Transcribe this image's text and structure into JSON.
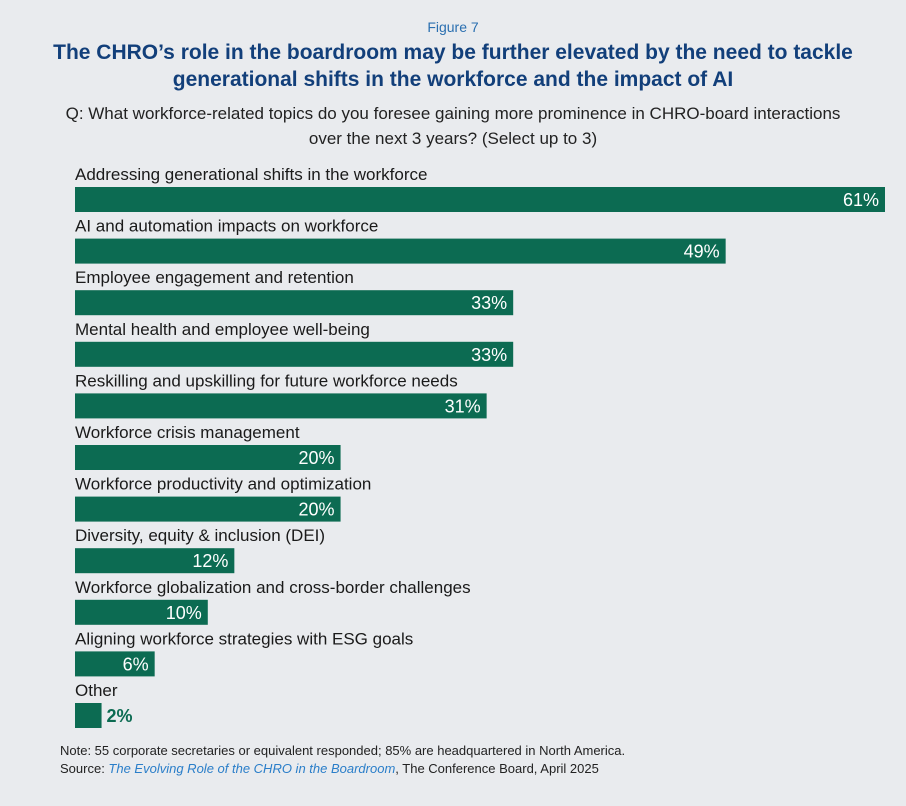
{
  "figure_label": "Figure 7",
  "title": "The CHRO’s role in the boardroom may be further elevated by the need to tackle generational shifts in the workforce and the impact of AI",
  "question": "Q: What workforce-related topics do you foresee gaining more prominence in CHRO-board interactions over the next 3 years? (Select up to 3)",
  "bar_color": "#0c6b52",
  "chart_data": {
    "type": "bar",
    "orientation": "horizontal",
    "categories": [
      "Addressing generational shifts in the workforce",
      "AI and automation impacts on workforce",
      "Employee engagement and retention",
      "Mental health and employee well-being",
      "Reskilling and upskilling for future workforce needs",
      "Workforce crisis management",
      "Workforce productivity and optimization",
      "Diversity, equity & inclusion (DEI)",
      "Workforce globalization and cross-border challenges",
      "Aligning workforce strategies with ESG goals",
      "Other"
    ],
    "values": [
      61,
      49,
      33,
      33,
      31,
      20,
      20,
      12,
      10,
      6,
      2
    ],
    "value_labels": [
      "61%",
      "49%",
      "33%",
      "33%",
      "31%",
      "20%",
      "20%",
      "12%",
      "10%",
      "6%",
      "2%"
    ],
    "xlim": [
      0,
      61
    ],
    "grid": false,
    "legend": "none"
  },
  "notes": {
    "note": "Note: 55 corporate secretaries or equivalent responded; 85% are headquartered in North America.",
    "source_prefix": "Source: ",
    "source_title": "The Evolving Role of the CHRO in the Boardroom",
    "source_suffix": ", The Conference Board, April 2025"
  }
}
